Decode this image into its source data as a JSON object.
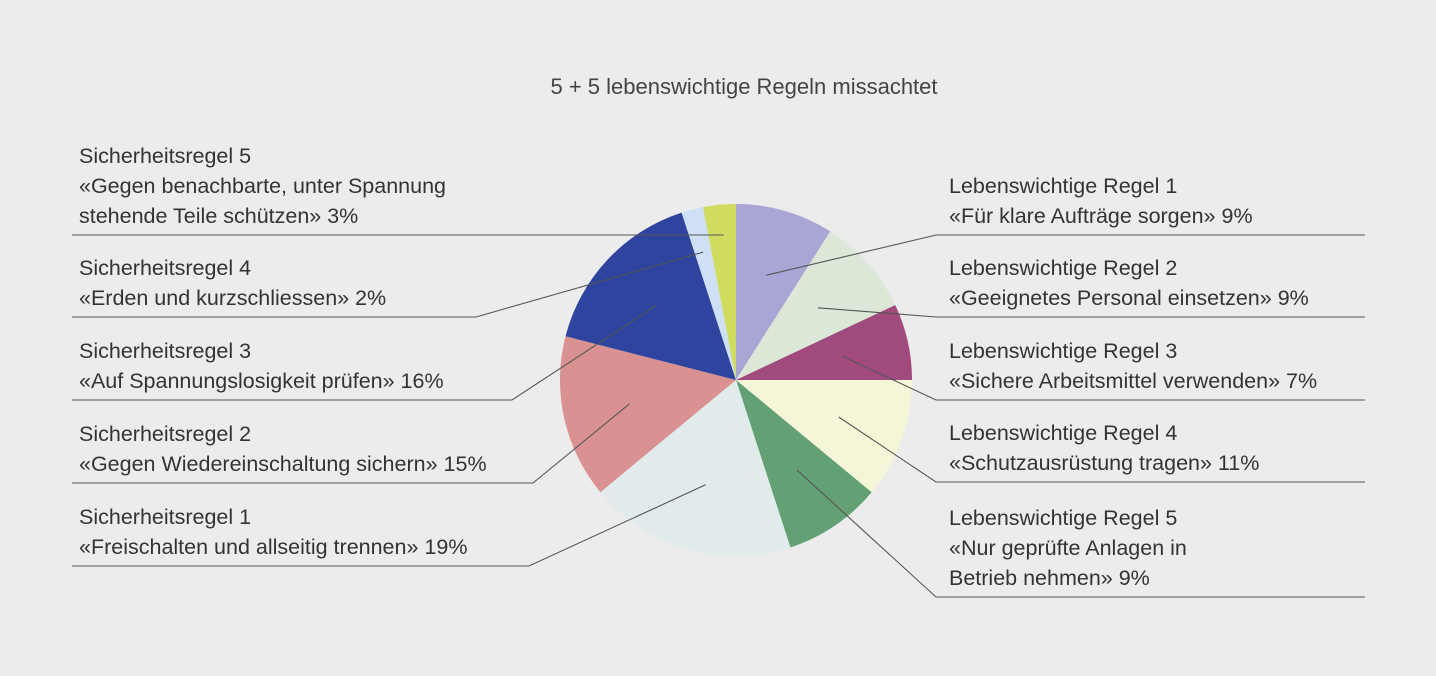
{
  "chart_data": {
    "type": "pie",
    "title": "5 + 5 lebenswichtige Regeln missachtet",
    "slices": [
      {
        "heading": "Lebenswichtige Regel 1",
        "lines": [
          "«Für klare Aufträge sorgen» 9%"
        ],
        "value": 9,
        "color": "#a9a6d6"
      },
      {
        "heading": "Lebenswichtige Regel 2",
        "lines": [
          "«Geeignetes Personal einsetzen» 9%"
        ],
        "value": 9,
        "color": "#dbe8d7"
      },
      {
        "heading": "Lebenswichtige Regel 3",
        "lines": [
          "«Sichere Arbeitsmittel verwenden» 7%"
        ],
        "value": 7,
        "color": "#a04a7d"
      },
      {
        "heading": "Lebenswichtige Regel 4",
        "lines": [
          "«Schutzausrüstung tragen» 11%"
        ],
        "value": 11,
        "color": "#f5f6d8"
      },
      {
        "heading": "Lebenswichtige Regel 5",
        "lines": [
          "«Nur geprüfte Anlagen in",
          "Betrieb nehmen» 9%"
        ],
        "value": 9,
        "color": "#63a073"
      },
      {
        "heading": "Sicherheitsregel 1",
        "lines": [
          "«Freischalten und allseitig trennen» 19%"
        ],
        "value": 19,
        "color": "#e1ebeb"
      },
      {
        "heading": "Sicherheitsregel 2",
        "lines": [
          "«Gegen Wiedereinschaltung sichern» 15%"
        ],
        "value": 15,
        "color": "#d99291"
      },
      {
        "heading": "Sicherheitsregel 3",
        "lines": [
          "«Auf Spannungslosigkeit prüfen» 16%"
        ],
        "value": 16,
        "color": "#2f449e"
      },
      {
        "heading": "Sicherheitsregel 4",
        "lines": [
          "«Erden und kurzschliessen» 2%"
        ],
        "value": 2,
        "color": "#cfe0f6"
      },
      {
        "heading": "Sicherheitsregel 5",
        "lines": [
          "«Gegen benachbarte, unter Spannung",
          "stehende Teile schützen» 3%"
        ],
        "value": 3,
        "color": "#cfdc60"
      }
    ]
  }
}
